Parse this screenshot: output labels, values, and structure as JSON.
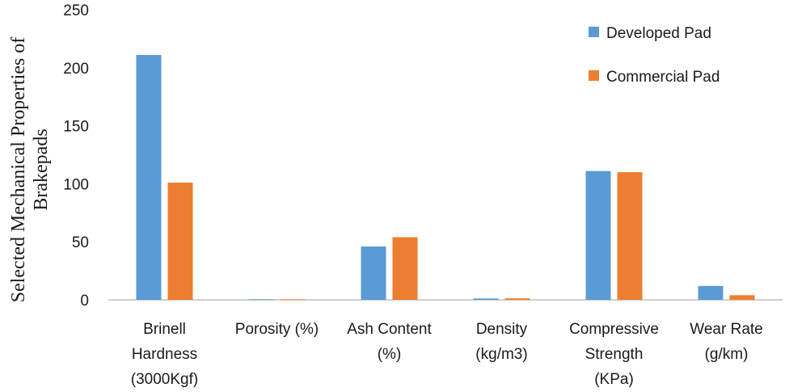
{
  "chart_data": {
    "type": "bar",
    "ylabel": [
      "Selected Mechanical Properties of",
      "Brakepads"
    ],
    "ylim": [
      0,
      250
    ],
    "yticks": [
      0,
      50,
      100,
      150,
      200,
      250
    ],
    "categories": [
      [
        "Brinell",
        "Hardness",
        "(3000Kgf)"
      ],
      [
        "Porosity (%)"
      ],
      [
        "Ash Content",
        "(%)"
      ],
      [
        "Density",
        "(kg/m3)"
      ],
      [
        "Compressive",
        "Strength",
        "(KPa)"
      ],
      [
        "Wear Rate",
        "(g/km)"
      ]
    ],
    "series": [
      {
        "name": "Developed Pad",
        "color": "#5b9bd5",
        "values": [
          211,
          0.5,
          46,
          1.2,
          111,
          12
        ]
      },
      {
        "name": "Commercial Pad",
        "color": "#ed7d31",
        "values": [
          101,
          0.4,
          54,
          1.3,
          110,
          4
        ]
      }
    ],
    "legend": "top-right",
    "grid": false
  }
}
